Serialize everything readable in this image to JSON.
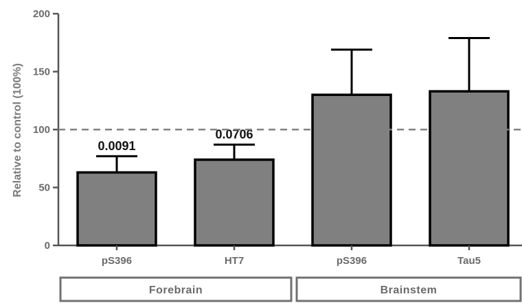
{
  "chart_data": {
    "type": "bar",
    "ylabel": "Relative to control (100%)",
    "ylim": [
      0,
      200
    ],
    "yticks": [
      0,
      50,
      100,
      150,
      200
    ],
    "reference_line": 100,
    "categories": [
      "pS396",
      "HT7",
      "pS396",
      "Tau5"
    ],
    "values": [
      63,
      74,
      130,
      133
    ],
    "error_upper": [
      77,
      87,
      169,
      179
    ],
    "annotations": [
      "0.0091",
      "0.0706",
      "",
      ""
    ],
    "groups": [
      {
        "label": "Forebrain",
        "categories": [
          0,
          1
        ]
      },
      {
        "label": "Brainstem",
        "categories": [
          2,
          3
        ]
      }
    ],
    "bar_color": "#808080",
    "edge_color": "#000000",
    "reference_color": "#808080"
  }
}
